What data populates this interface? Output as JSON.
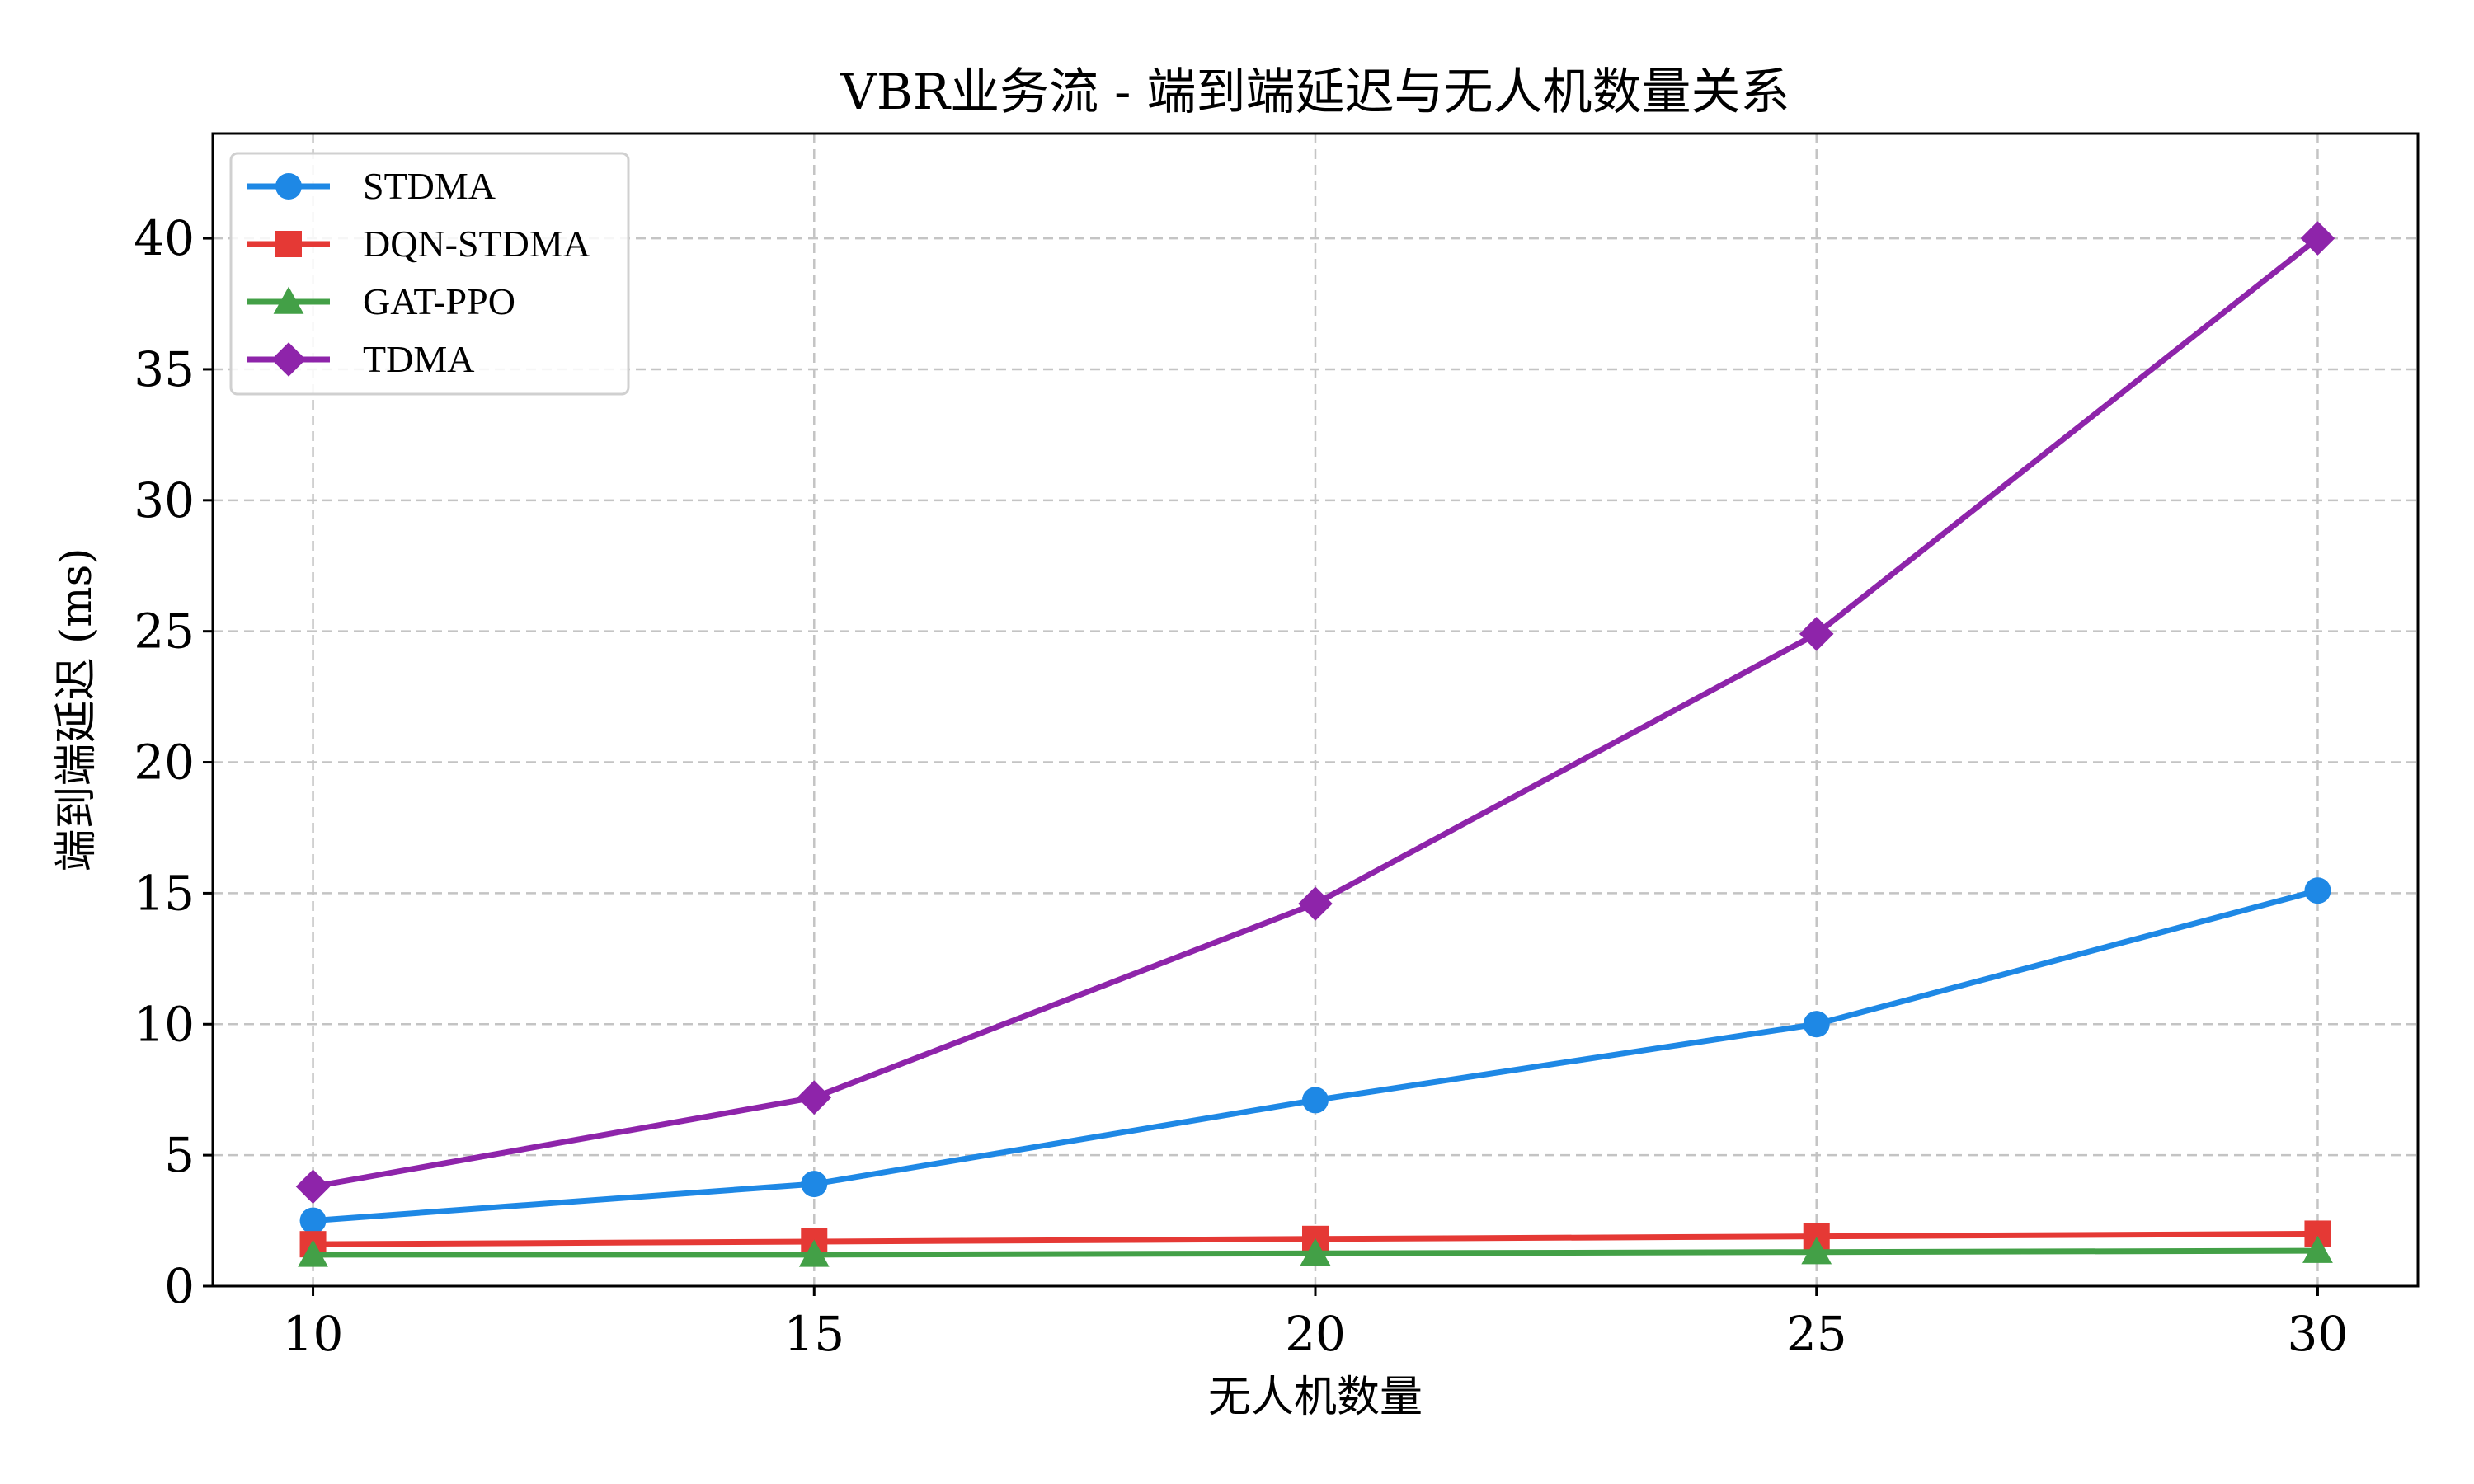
{
  "chart_data": {
    "type": "line",
    "title": "VBR业务流 - 端到端延迟与无人机数量关系",
    "xlabel": "无人机数量",
    "ylabel": "端到端延迟 (ms)",
    "x": [
      10,
      15,
      20,
      25,
      30
    ],
    "xlim": [
      9,
      31
    ],
    "ylim": [
      0,
      44
    ],
    "xticks": [
      10,
      15,
      20,
      25,
      30
    ],
    "yticks": [
      0,
      5,
      10,
      15,
      20,
      25,
      30,
      35,
      40
    ],
    "grid": true,
    "legend_position": "top-left",
    "series": [
      {
        "name": "STDMA",
        "color": "#1e88e5",
        "marker": "circle",
        "values": [
          2.5,
          3.9,
          7.1,
          10.0,
          15.1
        ]
      },
      {
        "name": "DQN-STDMA",
        "color": "#e53935",
        "marker": "square",
        "values": [
          1.6,
          1.7,
          1.8,
          1.9,
          2.0
        ]
      },
      {
        "name": "GAT-PPO",
        "color": "#43a047",
        "marker": "triangle",
        "values": [
          1.2,
          1.2,
          1.25,
          1.3,
          1.35
        ]
      },
      {
        "name": "TDMA",
        "color": "#8e24aa",
        "marker": "diamond",
        "values": [
          3.8,
          7.2,
          14.6,
          24.9,
          40.0
        ]
      }
    ]
  }
}
